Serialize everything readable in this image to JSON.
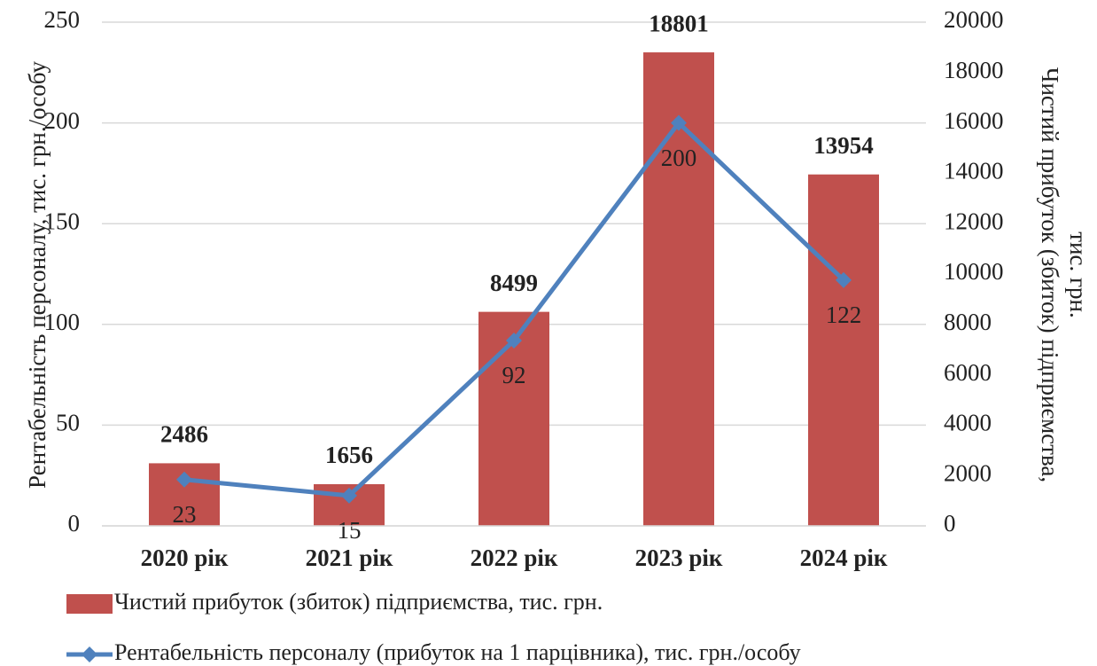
{
  "chart_data": {
    "type": "combo",
    "categories": [
      "2020 рік",
      "2021 рік",
      "2022 рік",
      "2023 рік",
      "2024 рік"
    ],
    "series": [
      {
        "name": "Чистий прибуток (збиток) підприємства, тис. грн.",
        "type": "bar",
        "axis": "y2",
        "color": "#c0504d",
        "values": [
          2486,
          1656,
          8499,
          18801,
          13954
        ]
      },
      {
        "name": "Рентабельність персоналу (прибуток на 1 парцівника), тис. грн./особу",
        "type": "line",
        "axis": "y",
        "color": "#4f81bd",
        "values": [
          23,
          15,
          92,
          200,
          122
        ]
      }
    ],
    "ylabel": "Рентабельність персоналу, тис. грн./особу",
    "y2label": [
      "Чистий прибуток (збиток) підприємства,",
      "тис. грн."
    ],
    "ylim": [
      0,
      250
    ],
    "yticks": [
      0,
      50,
      100,
      150,
      200,
      250
    ],
    "y2lim": [
      0,
      20000
    ],
    "y2ticks": [
      0,
      2000,
      4000,
      6000,
      8000,
      10000,
      12000,
      14000,
      16000,
      18000,
      20000
    ],
    "grid": true,
    "legend": "bottom"
  }
}
